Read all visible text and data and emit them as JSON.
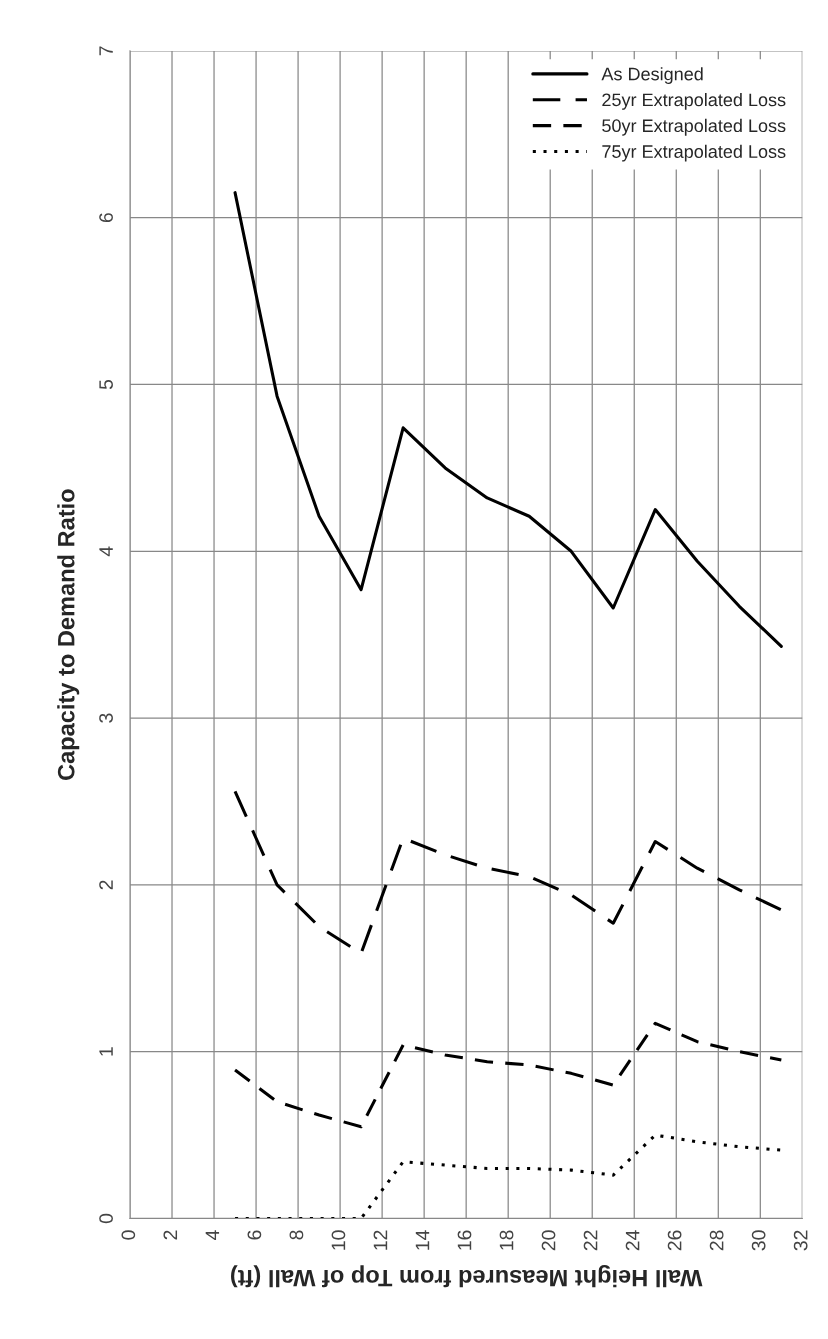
{
  "chart_data": {
    "type": "line",
    "xlabel": "Wall Height Measured from Top of Wall (ft)",
    "ylabel": "Capacity to Demand Ratio",
    "x": [
      5,
      7,
      9,
      11,
      13,
      15,
      17,
      19,
      21,
      23,
      25,
      27,
      29,
      31
    ],
    "series": [
      {
        "name": "As Designed",
        "color": "#000000",
        "line_style": "solid",
        "values": [
          6.15,
          4.93,
          4.21,
          3.77,
          4.74,
          4.5,
          4.32,
          4.21,
          4.0,
          3.66,
          4.25,
          3.94,
          3.67,
          3.43
        ]
      },
      {
        "name": "25yr Extrapolated Loss",
        "color": "#000000",
        "line_style": "dashed",
        "values": [
          2.56,
          2.0,
          1.75,
          1.59,
          2.28,
          2.18,
          2.1,
          2.05,
          1.94,
          1.77,
          2.26,
          2.1,
          1.97,
          1.85
        ]
      },
      {
        "name": "50yr Extrapolated Loss",
        "color": "#000000",
        "line_style": "dashed",
        "values": [
          0.89,
          0.7,
          0.62,
          0.55,
          1.04,
          0.98,
          0.94,
          0.92,
          0.87,
          0.8,
          1.17,
          1.06,
          1.0,
          0.95
        ]
      },
      {
        "name": "75yr Extrapolated Loss",
        "color": "#000000",
        "line_style": "dotted",
        "values": [
          0,
          0,
          0,
          0,
          0.34,
          0.32,
          0.3,
          0.3,
          0.29,
          0.26,
          0.5,
          0.46,
          0.43,
          0.41
        ]
      }
    ],
    "xlim": [
      0,
      32
    ],
    "xticks": [
      0,
      2,
      4,
      6,
      8,
      10,
      12,
      14,
      16,
      18,
      20,
      22,
      24,
      26,
      28,
      30,
      32
    ],
    "ylim": [
      0,
      7
    ],
    "yticks": [
      0,
      1,
      2,
      3,
      4,
      5,
      6,
      7
    ],
    "grid": true,
    "legend": "top right",
    "marker": "none"
  }
}
